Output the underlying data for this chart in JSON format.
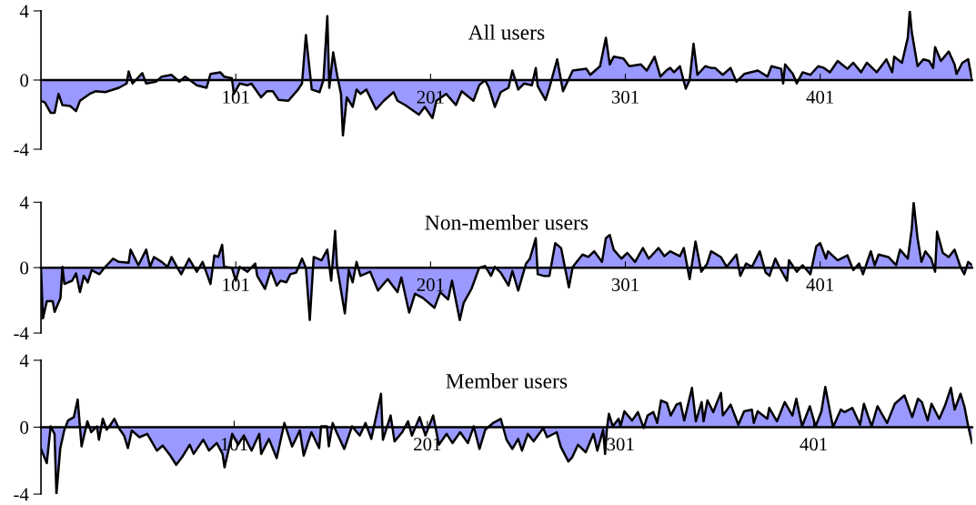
{
  "chart_data": [
    {
      "type": "area",
      "title": "All users",
      "xlim": [
        1,
        479
      ],
      "xticks": [
        101,
        201,
        301,
        401
      ],
      "ylim": [
        -4,
        4
      ],
      "yticks": [
        -4,
        0,
        4
      ],
      "grid": false,
      "x": [
        1,
        3,
        6,
        8,
        10,
        12,
        16,
        19,
        21,
        26,
        29,
        34,
        41,
        45,
        46,
        48,
        53,
        55,
        60,
        63,
        68,
        72,
        75,
        81,
        86,
        88,
        93,
        95,
        99,
        100,
        103,
        107,
        109,
        114,
        117,
        120,
        123,
        128,
        133,
        135,
        137,
        140,
        144,
        146,
        148,
        149,
        151,
        153,
        155,
        156,
        158,
        161,
        163,
        165,
        168,
        173,
        177,
        182,
        184,
        188,
        195,
        198,
        202,
        204,
        209,
        214,
        217,
        223,
        226,
        229,
        231,
        234,
        237,
        241,
        243,
        246,
        249,
        253,
        255,
        256,
        260,
        262,
        266,
        269,
        274,
        281,
        283,
        288,
        291,
        293,
        295,
        300,
        303,
        309,
        312,
        316,
        319,
        322,
        324,
        326,
        329,
        332,
        334,
        336,
        338,
        342,
        345,
        347,
        351,
        355,
        358,
        362,
        369,
        374,
        376,
        381,
        382,
        383,
        387,
        389,
        392,
        396,
        400,
        403,
        406,
        410,
        415,
        418,
        422,
        425,
        430,
        435,
        438,
        439,
        443,
        446,
        447,
        448,
        451,
        454,
        457,
        459,
        460,
        463,
        467,
        470,
        471,
        474,
        477,
        479
      ],
      "series": [
        {
          "color": "#9999ff",
          "values": [
            -1.2,
            -1.3,
            -1.9,
            -1.9,
            -0.8,
            -1.45,
            -1.5,
            -1.8,
            -1.2,
            -0.8,
            -0.65,
            -0.7,
            -0.45,
            -0.2,
            0.5,
            -0.2,
            0.4,
            -0.2,
            -0.1,
            0.2,
            0.3,
            -0.1,
            0.2,
            -0.3,
            -0.45,
            0.35,
            0.45,
            0.2,
            0.1,
            -0.8,
            -0.2,
            -0.3,
            -0.2,
            -1.0,
            -0.65,
            -0.65,
            -1.15,
            -1.2,
            -0.55,
            -0.2,
            2.6,
            -0.55,
            -0.7,
            0,
            3.7,
            -0.45,
            1.6,
            0.3,
            -0.8,
            -3.2,
            -1.0,
            -1.55,
            -0.55,
            -0.8,
            -0.55,
            -1.7,
            -1.2,
            -0.7,
            -1.2,
            -1.45,
            -2.0,
            -1.55,
            -2.2,
            -1.2,
            -0.8,
            -1.45,
            -0.65,
            -1.2,
            -0.3,
            0,
            -0.45,
            -1.55,
            -0.7,
            -0.45,
            0.55,
            -0.55,
            -0.2,
            -0.3,
            0.7,
            -0.35,
            -1.15,
            -0.45,
            1.2,
            -0.65,
            0.55,
            0.65,
            0.3,
            0.8,
            2.45,
            0.9,
            1.35,
            1.25,
            0.8,
            0.9,
            0.55,
            1.35,
            0.2,
            0.55,
            0.7,
            0.45,
            0.8,
            -0.5,
            0,
            2.1,
            0.3,
            0.8,
            0.7,
            0.7,
            0.3,
            0.7,
            -0.1,
            0.35,
            0.55,
            0.2,
            0.8,
            0.65,
            -0.2,
            0.9,
            0.35,
            -0.2,
            0.45,
            0.3,
            0.8,
            0.7,
            0.45,
            1.1,
            0.65,
            1.0,
            0.45,
            1.0,
            0.45,
            1.2,
            0.45,
            1.35,
            1.0,
            2.45,
            4.0,
            2.8,
            0.8,
            1.2,
            1.1,
            0.7,
            1.9,
            1.1,
            1.65,
            0.9,
            0.35,
            1.0,
            1.2,
            0
          ]
        }
      ]
    },
    {
      "type": "area",
      "title": "Non-member users",
      "xlim": [
        1,
        479
      ],
      "xticks": [
        101,
        201,
        301,
        401
      ],
      "ylim": [
        -4,
        4
      ],
      "yticks": [
        -4,
        0,
        4
      ],
      "grid": false,
      "x": [
        1,
        2,
        4,
        7,
        8,
        11,
        12,
        13,
        17,
        19,
        21,
        23,
        25,
        27,
        31,
        34,
        38,
        41,
        46,
        47,
        51,
        55,
        57,
        59,
        63,
        66,
        68,
        71,
        73,
        77,
        81,
        84,
        88,
        90,
        92,
        94,
        95,
        99,
        101,
        103,
        107,
        111,
        112,
        116,
        119,
        122,
        124,
        127,
        129,
        132,
        135,
        137,
        139,
        141,
        145,
        148,
        150,
        152,
        153,
        157,
        159,
        161,
        163,
        165,
        170,
        174,
        179,
        184,
        186,
        190,
        193,
        197,
        203,
        206,
        210,
        212,
        216,
        218,
        222,
        226,
        229,
        232,
        234,
        237,
        241,
        243,
        246,
        250,
        252,
        255,
        256,
        259,
        262,
        265,
        268,
        272,
        274,
        279,
        282,
        285,
        289,
        291,
        293,
        295,
        299,
        302,
        306,
        310,
        313,
        318,
        321,
        324,
        329,
        331,
        334,
        337,
        340,
        343,
        345,
        350,
        353,
        358,
        360,
        363,
        366,
        370,
        373,
        375,
        378,
        380,
        384,
        385,
        389,
        392,
        396,
        399,
        401,
        404,
        405,
        410,
        415,
        418,
        421,
        423,
        427,
        429,
        431,
        436,
        440,
        442,
        446,
        448,
        449,
        451,
        453,
        455,
        458,
        460,
        461,
        464,
        467,
        470,
        473,
        475,
        477,
        479
      ],
      "series": [
        {
          "color": "#9999ff",
          "values": [
            0,
            -3.1,
            -2.05,
            -2.05,
            -2.7,
            -1.85,
            0.05,
            -1.0,
            -0.8,
            -0.35,
            -1.5,
            -0.5,
            -0.9,
            -0.15,
            -0.4,
            0.05,
            0.55,
            0.35,
            0.3,
            1.1,
            0.15,
            1.1,
            0.05,
            0.65,
            0.35,
            0.05,
            0.65,
            0,
            -0.4,
            0.55,
            -0.25,
            0.35,
            -1.0,
            0.75,
            0.65,
            1.4,
            0.05,
            0,
            -0.8,
            0.05,
            -0.25,
            0.25,
            -0.5,
            -1.3,
            -0.15,
            -1.1,
            -0.8,
            -0.9,
            -0.4,
            -0.3,
            0.55,
            0,
            -3.2,
            0.65,
            0.45,
            1.1,
            -0.8,
            2.25,
            0.05,
            -2.8,
            -0.15,
            -0.9,
            0.35,
            -0.5,
            -0.25,
            -1.4,
            -0.7,
            -1.5,
            -0.6,
            -2.75,
            -1.6,
            -1.85,
            -2.45,
            -1.5,
            -1.95,
            -0.8,
            -3.2,
            -2.15,
            -1.3,
            0,
            0.1,
            -0.5,
            0.05,
            -0.3,
            -1.1,
            -0.2,
            -1.4,
            0.25,
            0.55,
            1.8,
            -0.4,
            -0.5,
            -0.5,
            1.5,
            1.2,
            -1.2,
            0.05,
            0.8,
            0.65,
            1.0,
            0.35,
            1.8,
            2.0,
            1.1,
            0.55,
            0.9,
            0.35,
            1.2,
            0.55,
            1.2,
            0.7,
            1.0,
            0.7,
            1.2,
            -0.7,
            1.6,
            -0.25,
            0.25,
            1.0,
            0.65,
            0.05,
            0.8,
            -0.5,
            0.25,
            0.05,
            1.0,
            -0.3,
            -0.5,
            0.55,
            0.05,
            -0.8,
            0.45,
            -0.25,
            0.15,
            -0.4,
            1.3,
            1.5,
            0.55,
            1.0,
            0.45,
            0.75,
            -0.15,
            0.25,
            -0.4,
            1.0,
            0.15,
            0.8,
            0.65,
            0.15,
            1.1,
            0.55,
            2.35,
            4.0,
            1.8,
            0.35,
            1.0,
            0.55,
            -0.25,
            2.2,
            0.9,
            0.65,
            1.1,
            0.05,
            -0.4,
            0.35,
            0.15
          ]
        }
      ]
    },
    {
      "type": "area",
      "title": "Member users",
      "xlim": [
        1,
        483
      ],
      "xticks": [
        101,
        201,
        301,
        401
      ],
      "ylim": [
        -4,
        4
      ],
      "yticks": [
        -4,
        0,
        4
      ],
      "grid": false,
      "x": [
        1,
        4,
        6,
        8,
        9,
        11,
        13,
        15,
        18,
        20,
        22,
        25,
        27,
        30,
        31,
        33,
        35,
        37,
        39,
        41,
        44,
        46,
        48,
        52,
        56,
        61,
        64,
        68,
        71,
        74,
        78,
        80,
        85,
        88,
        92,
        95,
        96,
        100,
        103,
        106,
        110,
        114,
        115,
        119,
        123,
        127,
        131,
        135,
        137,
        141,
        145,
        146,
        149,
        150,
        152,
        154,
        158,
        162,
        166,
        169,
        172,
        177,
        178,
        182,
        184,
        188,
        191,
        193,
        197,
        200,
        204,
        207,
        211,
        214,
        218,
        222,
        225,
        228,
        231,
        234,
        235,
        239,
        242,
        245,
        248,
        250,
        253,
        256,
        261,
        263,
        268,
        270,
        274,
        276,
        279,
        283,
        287,
        289,
        292,
        293,
        294,
        295,
        297,
        300,
        301,
        303,
        307,
        310,
        313,
        315,
        318,
        320,
        322,
        325,
        327,
        330,
        332,
        334,
        338,
        340,
        343,
        344,
        346,
        349,
        351,
        353,
        354,
        358,
        362,
        365,
        369,
        370,
        372,
        377,
        378,
        382,
        386,
        390,
        392,
        395,
        399,
        402,
        405,
        407,
        411,
        415,
        417,
        421,
        425,
        427,
        431,
        434,
        439,
        443,
        448,
        452,
        455,
        457,
        460,
        462,
        466,
        469,
        472,
        474,
        477,
        479,
        481,
        483
      ],
      "series": [
        {
          "color": "#9999ff",
          "values": [
            -1.3,
            -2.15,
            0.05,
            -0.4,
            -4.0,
            -1.25,
            -0.2,
            0.4,
            0.6,
            1.65,
            -1.15,
            0.35,
            -0.3,
            0.05,
            -0.75,
            0.5,
            -0.15,
            0.15,
            0.5,
            0,
            -0.5,
            -1.25,
            -0.2,
            -0.6,
            -0.4,
            -1.4,
            -1.1,
            -1.7,
            -2.25,
            -1.8,
            -1.05,
            -1.6,
            -0.75,
            -1.4,
            -0.95,
            -1.6,
            -2.4,
            -0.4,
            -1.05,
            -0.5,
            -1.4,
            -0.4,
            -1.6,
            -0.7,
            -1.85,
            0.25,
            -1.15,
            -0.2,
            -1.7,
            -0.3,
            -1.25,
            0.05,
            0.05,
            -1.15,
            0.25,
            -0.3,
            -1.3,
            0.05,
            -0.5,
            0.25,
            -0.7,
            2.0,
            -0.75,
            0.7,
            -0.85,
            -0.3,
            0.35,
            -0.5,
            0.6,
            -0.5,
            0.7,
            -1.05,
            -0.4,
            -0.95,
            -0.3,
            -0.95,
            0.05,
            -1.3,
            -0.15,
            0.15,
            0.25,
            0.5,
            -0.75,
            -1.3,
            -0.7,
            -1.4,
            -0.4,
            -0.85,
            -0.05,
            -0.6,
            -0.3,
            -1.15,
            -2.05,
            -1.8,
            -1.05,
            -1.5,
            -0.4,
            -1.4,
            -0.15,
            -1.6,
            -0.05,
            0.8,
            0.05,
            0.5,
            0.05,
            0.95,
            0.4,
            0.9,
            -0.05,
            0.7,
            0.9,
            0.25,
            1.6,
            1.45,
            0.7,
            1.35,
            1.45,
            0.4,
            2.35,
            0.35,
            1.5,
            0.35,
            1.6,
            0.9,
            1.5,
            2.05,
            0.7,
            1.35,
            0.15,
            0.95,
            1.05,
            0.25,
            0.95,
            0.5,
            1.15,
            0.35,
            1.5,
            0.7,
            1.7,
            0.05,
            1.25,
            0.05,
            0.95,
            2.4,
            0,
            1.05,
            0.9,
            1.15,
            0.15,
            1.4,
            0.05,
            1.25,
            0.25,
            1.4,
            1.9,
            0.6,
            1.7,
            1.5,
            0.4,
            1.4,
            0.5,
            1.3,
            2.35,
            1.05,
            2.0,
            1.25,
            0.05,
            -0.95
          ]
        }
      ]
    }
  ]
}
